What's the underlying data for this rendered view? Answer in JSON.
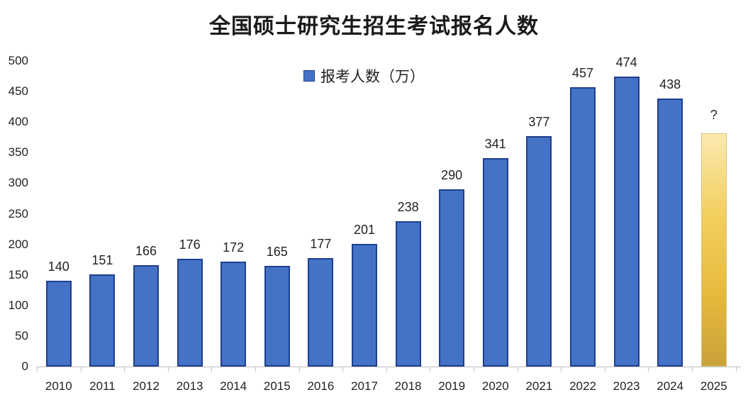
{
  "chart_data": {
    "type": "bar",
    "title": "全国硕士研究生招生考试报名人数",
    "xlabel": "",
    "ylabel": "",
    "legend": {
      "entries": [
        "报考人数（万）"
      ],
      "position": "top-center"
    },
    "categories": [
      "2010",
      "2011",
      "2012",
      "2013",
      "2014",
      "2015",
      "2016",
      "2017",
      "2018",
      "2019",
      "2020",
      "2021",
      "2022",
      "2023",
      "2024",
      "2025"
    ],
    "series": [
      {
        "name": "报考人数（万）",
        "values": [
          140,
          151,
          166,
          176,
          172,
          165,
          177,
          201,
          238,
          290,
          341,
          377,
          457,
          474,
          438,
          null
        ],
        "color": "#4472c4"
      }
    ],
    "annotations": [
      {
        "category": "2025",
        "label": "?",
        "estimated_bar_height": 382,
        "color": "#e6b93c",
        "style": "gold gradient placeholder"
      }
    ],
    "data_labels": [
      "140",
      "151",
      "166",
      "176",
      "172",
      "165",
      "177",
      "201",
      "238",
      "290",
      "341",
      "377",
      "457",
      "474",
      "438",
      "?"
    ],
    "yticks": [
      "0",
      "50",
      "100",
      "150",
      "200",
      "250",
      "300",
      "350",
      "400",
      "450",
      "500"
    ],
    "ylim": [
      0,
      500
    ],
    "grid": false
  },
  "colors": {
    "bar": "#4472c4",
    "bar_border": "#1f3f8f",
    "placeholder_bar": "#e6b93c",
    "axis": "#bfbfbf"
  }
}
